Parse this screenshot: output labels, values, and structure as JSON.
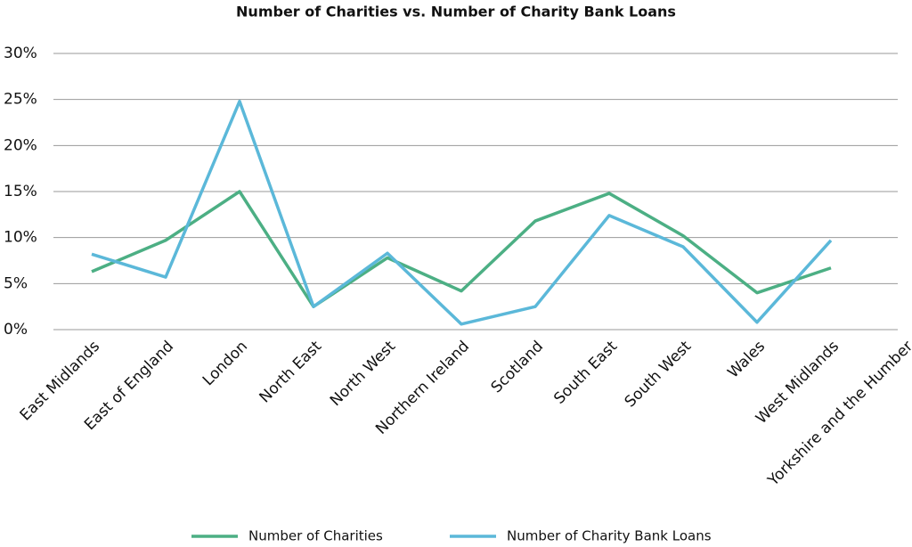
{
  "chart_data": {
    "type": "line",
    "title": "Number of Charities vs. Number of Charity Bank Loans",
    "categories": [
      "East Midlands",
      "East of England",
      "London",
      "North East",
      "North West",
      "Northern Ireland",
      "Scotland",
      "South East",
      "South West",
      "Wales",
      "West Midlands",
      "Yorkshire and the Humber"
    ],
    "series": [
      {
        "name": "Number of Charities",
        "color": "#4caf84",
        "values": [
          6.3,
          9.7,
          15,
          2.5,
          7.8,
          4.2,
          11.8,
          14.8,
          10.2,
          4,
          6.7,
          null
        ]
      },
      {
        "name": "Number of Charity Bank Loans",
        "color": "#5bb8d9",
        "values": [
          8.2,
          5.7,
          24.8,
          2.5,
          8.3,
          0.6,
          2.5,
          12.4,
          9,
          0.8,
          9.7,
          null
        ]
      }
    ],
    "ylim": [
      0,
      30
    ],
    "yticks": [
      {
        "value": 0,
        "label": "0%"
      },
      {
        "value": 5,
        "label": "5%"
      },
      {
        "value": 10,
        "label": "10%"
      },
      {
        "value": 15,
        "label": "15%"
      },
      {
        "value": 20,
        "label": "20%"
      },
      {
        "value": 25,
        "label": "25%"
      },
      {
        "value": 30,
        "label": "30%"
      }
    ],
    "grid": true,
    "legend": "bottom"
  }
}
